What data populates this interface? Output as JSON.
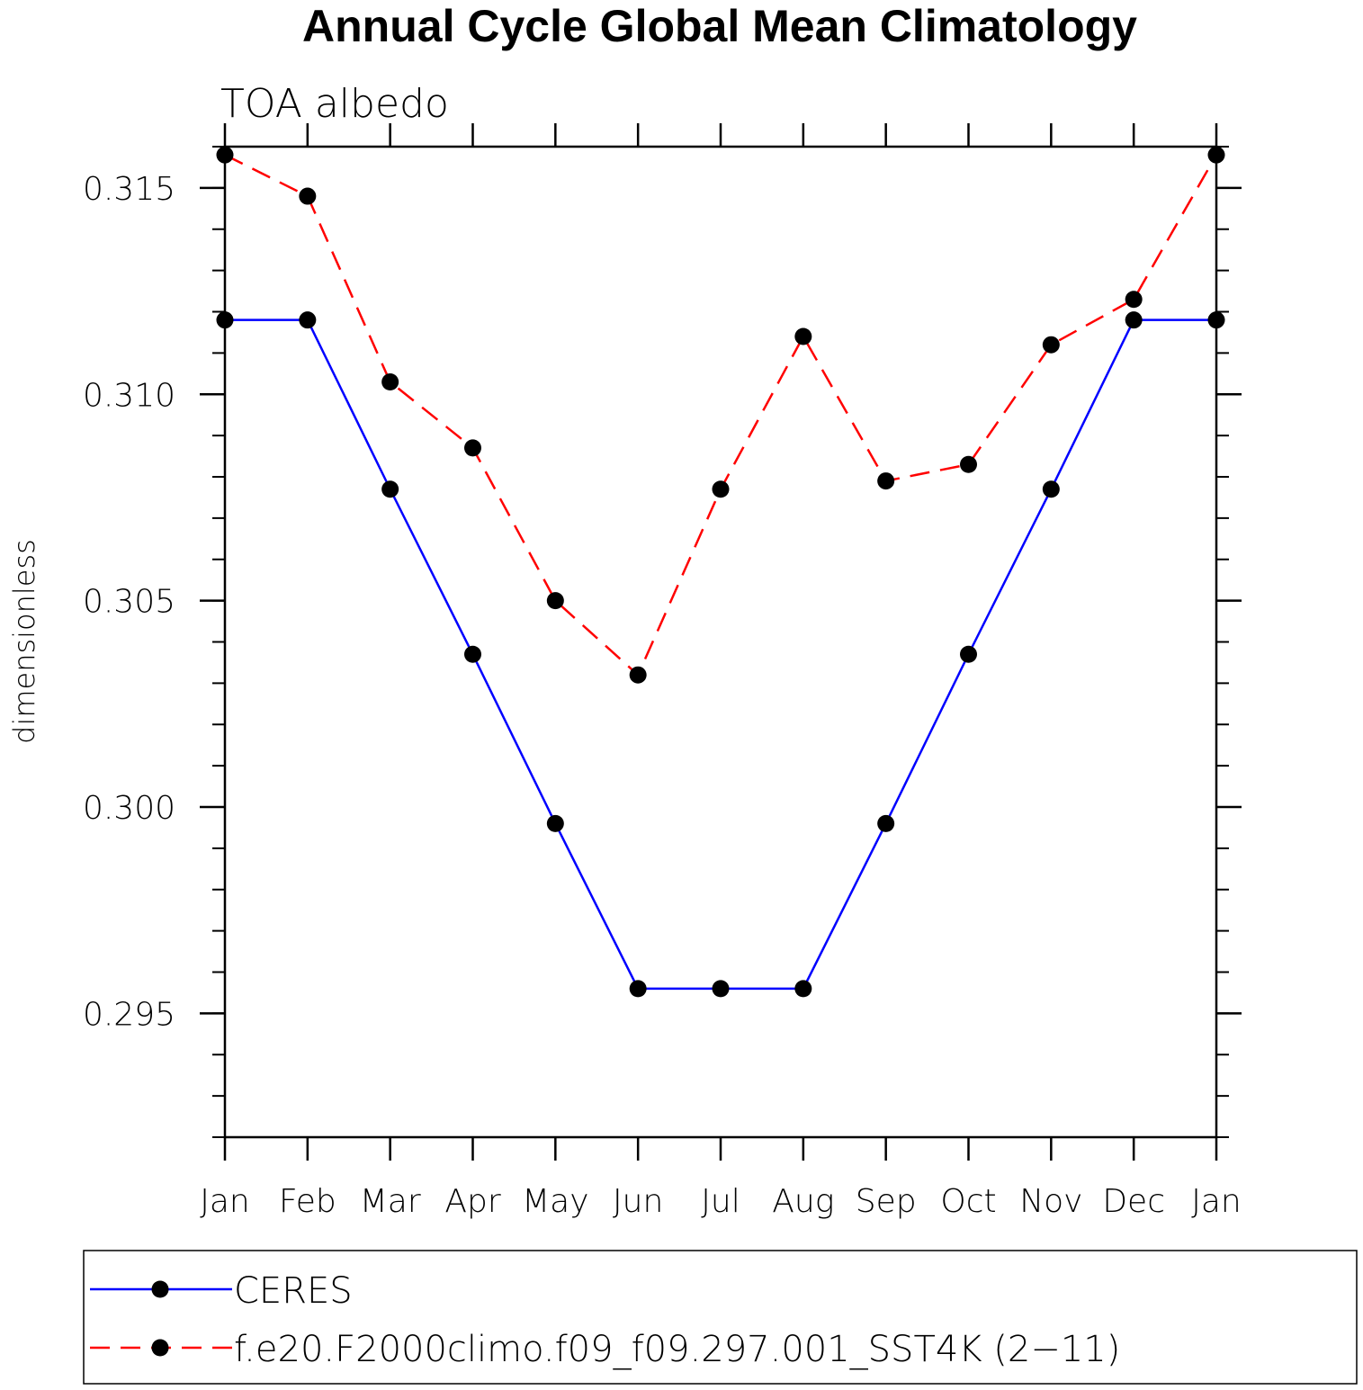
{
  "chart_data": {
    "type": "line",
    "title": "Annual Cycle Global Mean Climatology",
    "subtitle": "TOA  albedo",
    "xlabel": "",
    "ylabel": "dimensionless",
    "categories": [
      "Jan",
      "Feb",
      "Mar",
      "Apr",
      "May",
      "Jun",
      "Jul",
      "Aug",
      "Sep",
      "Oct",
      "Nov",
      "Dec",
      "Jan"
    ],
    "ylim": [
      0.292,
      0.316
    ],
    "yticks": [
      "0.295",
      "0.300",
      "0.305",
      "0.310",
      "0.315"
    ],
    "grid": false,
    "legend_position": "bottom",
    "series": [
      {
        "name": "CERES",
        "color": "#0000ff",
        "dashed": false,
        "values": [
          0.3118,
          0.3118,
          0.3077,
          0.3037,
          0.2996,
          0.2956,
          0.2956,
          0.2956,
          0.2996,
          0.3037,
          0.3077,
          0.3118,
          0.3118
        ]
      },
      {
        "name": "f.e20.F2000climo.f09_f09.297.001_SST4K (2−11)",
        "color": "#ff0000",
        "dashed": true,
        "values": [
          0.3158,
          0.3148,
          0.3103,
          0.3087,
          0.305,
          0.3032,
          0.3077,
          0.3114,
          0.3079,
          0.3083,
          0.3112,
          0.3123,
          0.3158
        ]
      }
    ]
  }
}
